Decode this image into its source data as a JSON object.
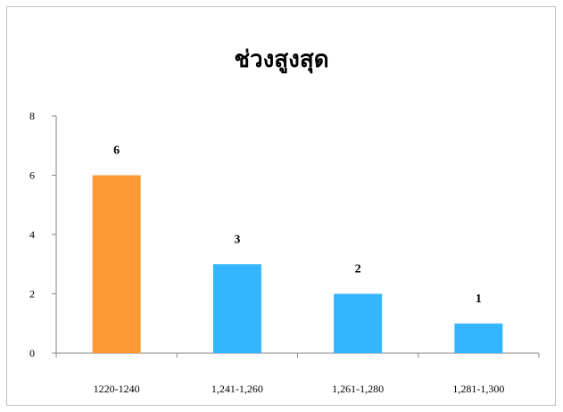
{
  "chart_data": {
    "type": "bar",
    "title": "ช่วงสูงสุด",
    "categories": [
      "1220-1240",
      "1,241-1,260",
      "1,261-1,280",
      "1,281-1,300"
    ],
    "values": [
      6,
      3,
      2,
      1
    ],
    "data_labels": [
      "6",
      "3",
      "2",
      "1"
    ],
    "bar_colors": [
      "#FF9933",
      "#33B5FF",
      "#33B5FF",
      "#33B5FF"
    ],
    "ylim": [
      0,
      8
    ],
    "yticks": [
      0,
      2,
      4,
      6,
      8
    ],
    "xlabel": "",
    "ylabel": "",
    "grid": false,
    "legend": "none"
  }
}
